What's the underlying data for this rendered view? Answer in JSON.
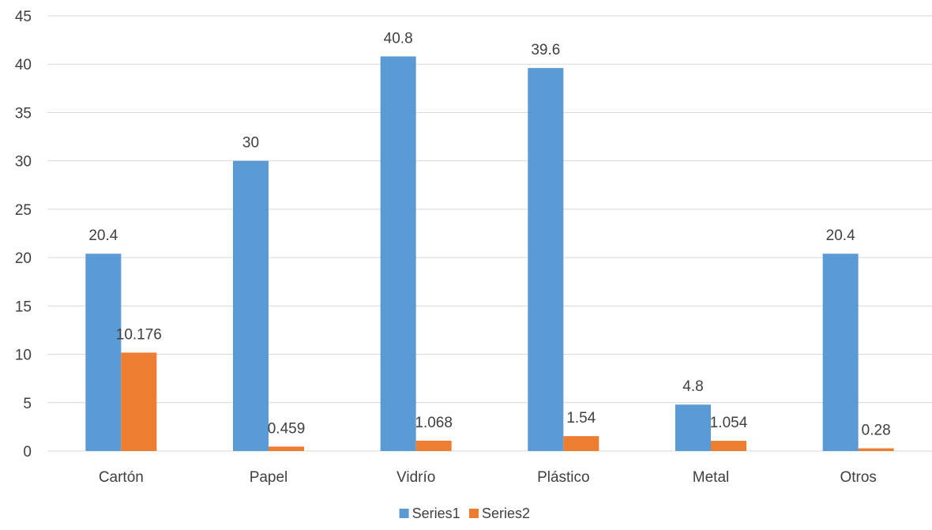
{
  "chart_data": {
    "type": "bar",
    "title": "",
    "xlabel": "",
    "ylabel": "",
    "categories": [
      "Cartón",
      "Papel",
      "Vidrío",
      "Plástico",
      "Metal",
      "Otros"
    ],
    "series": [
      {
        "name": "Series1",
        "color": "#5b9bd5",
        "values": [
          20.4,
          30,
          40.8,
          39.6,
          4.8,
          20.4
        ],
        "labels": [
          "20.4",
          "30",
          "40.8",
          "39.6",
          "4.8",
          "20.4"
        ]
      },
      {
        "name": "Series2",
        "color": "#ed7d31",
        "values": [
          10.176,
          0.459,
          1.068,
          1.54,
          1.054,
          0.28
        ],
        "labels": [
          "10.176",
          "0.459",
          "1.068",
          "1.54",
          "1.054",
          "0.28"
        ]
      }
    ],
    "ylim": [
      0,
      45
    ],
    "yticks": [
      0,
      5,
      10,
      15,
      20,
      25,
      30,
      35,
      40,
      45
    ],
    "grid": true,
    "legend_position": "bottom"
  }
}
